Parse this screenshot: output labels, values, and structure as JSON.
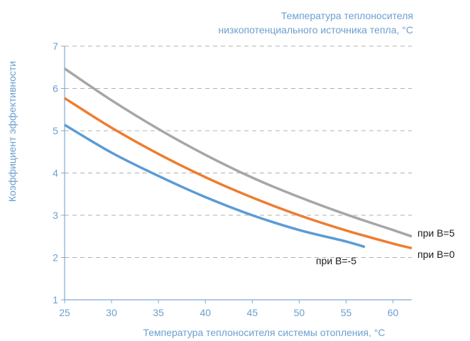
{
  "chart_data": {
    "type": "line",
    "title": "",
    "legend_title_lines": [
      "Температура теплоносителя",
      "низкопотенциального источника тепла, °C"
    ],
    "xlabel": "Температура теплоносителя системы отопления, °C",
    "ylabel": "Коэффициент эффективности",
    "xlim": [
      25,
      62
    ],
    "ylim": [
      1,
      7
    ],
    "xticks": [
      25,
      30,
      35,
      40,
      45,
      50,
      55,
      60
    ],
    "yticks": [
      1,
      2,
      3,
      4,
      5,
      6,
      7
    ],
    "grid": {
      "horizontal": true,
      "style": "dashed"
    },
    "series": [
      {
        "name": "при B=5",
        "color": "#a6a6a6",
        "x": [
          25,
          30,
          35,
          40,
          45,
          50,
          55,
          60,
          62
        ],
        "y": [
          6.47,
          5.72,
          5.04,
          4.43,
          3.89,
          3.43,
          3.02,
          2.65,
          2.5
        ]
      },
      {
        "name": "при B=0",
        "color": "#ed7d31",
        "x": [
          25,
          30,
          35,
          40,
          45,
          50,
          55,
          60,
          62
        ],
        "y": [
          5.77,
          5.07,
          4.45,
          3.9,
          3.42,
          3.0,
          2.64,
          2.33,
          2.22
        ]
      },
      {
        "name": "при B=-5",
        "color": "#5b9bd5",
        "x": [
          25,
          30,
          35,
          40,
          45,
          50,
          55,
          57
        ],
        "y": [
          5.14,
          4.48,
          3.93,
          3.43,
          3.0,
          2.65,
          2.38,
          2.25
        ]
      }
    ],
    "colors": {
      "axis": "#7fa9d6",
      "grid": "#b0b0b0",
      "text": "#6b9fd0"
    }
  }
}
